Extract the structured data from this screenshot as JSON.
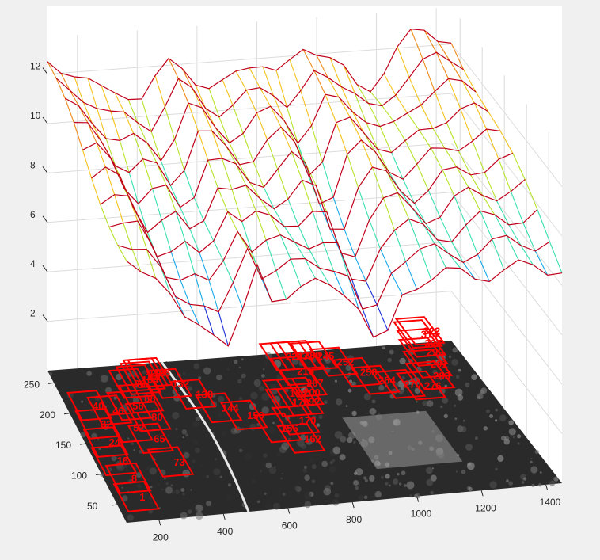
{
  "chart_data": {
    "type": "surface",
    "grid": true,
    "zlim": [
      0,
      13
    ],
    "z_ticks": [
      2,
      4,
      6,
      8,
      10,
      12
    ],
    "x_ticks": [
      200,
      400,
      600,
      800,
      1000,
      1200,
      1400
    ],
    "y_ticks": [
      50,
      100,
      150,
      200,
      250
    ],
    "surface_colors": {
      "edge": "#c0001a",
      "ramp": [
        "#1a2fd8",
        "#18a9e8",
        "#38e0b0",
        "#b7e32a",
        "#f5c21b",
        "#f08a18"
      ]
    },
    "frame_labels": [
      "1",
      "8",
      "16",
      "24",
      "32",
      "40",
      "46",
      "52",
      "58",
      "65",
      "73",
      "80",
      "88",
      "96",
      "104",
      "111",
      "119",
      "126",
      "132",
      "138",
      "144",
      "150",
      "156",
      "162",
      "170",
      "178",
      "184",
      "192",
      "200",
      "207",
      "215",
      "223",
      "231",
      "239",
      "245",
      "252",
      "258",
      "264",
      "270",
      "276",
      "283",
      "291",
      "299",
      "307",
      "314",
      "322"
    ],
    "label_color": "#ff0000"
  }
}
